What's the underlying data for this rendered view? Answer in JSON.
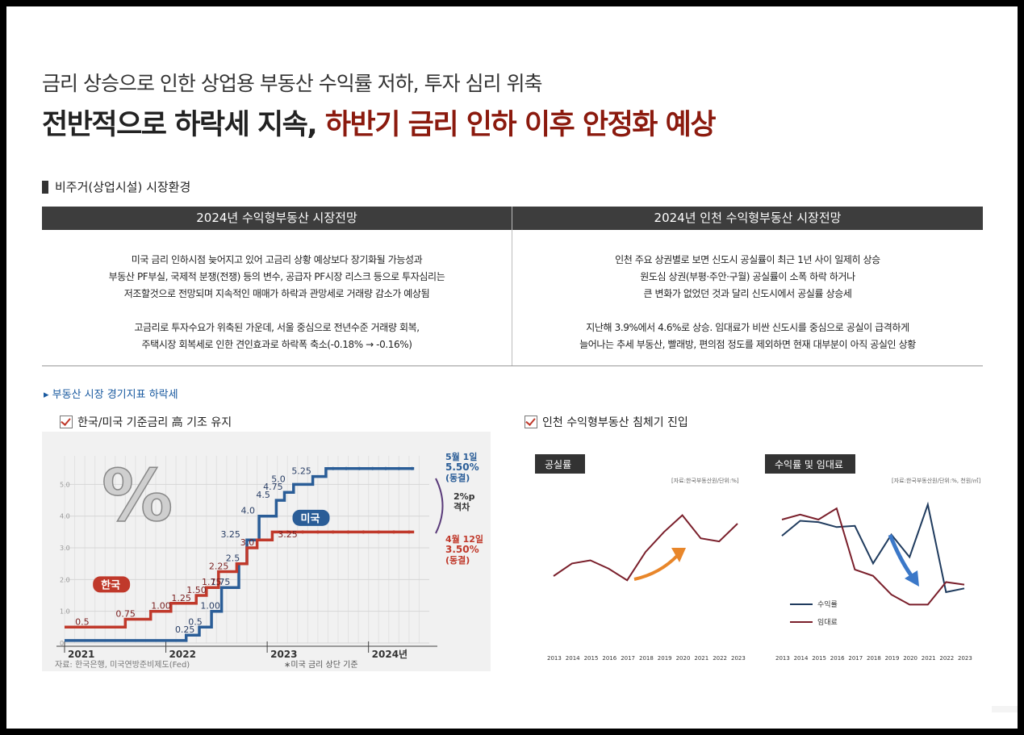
{
  "header": {
    "line1": "금리 상승으로 인한 상업용 부동산 수익률 저하, 투자 심리 위축",
    "line2_black": "전반적으로 하락세 지속, ",
    "line2_red": "하반기 금리 인하 이후 안정화 예상"
  },
  "section_title": "비주거(상업시설) 시장환경",
  "table": {
    "left_header": "2024년 수익형부동산 시장전망",
    "left_p1": [
      "미국 금리 인하시점 늦어지고 있어 고금리 상황 예상보다 장기화될 가능성과",
      "부동산 PF부실, 국제적 분쟁(전쟁) 등의 변수, 공급자 PF시장 리스크 등으로 투자심리는",
      "저조할것으로 전망되며 지속적인 매매가 하락과 관망세로 거래량 감소가 예상됨"
    ],
    "left_p2": [
      "고금리로 투자수요가 위축된 가운데, 서울 중심으로 전년수준 거래량 회복,",
      "주택시장 회복세로 인한 견인효과로 하락폭 축소(-0.18% → -0.16%)"
    ],
    "right_header": "2024년 인천 수익형부동산 시장전망",
    "right_p1": [
      "인천 주요 상권별로 보면 신도시 공실률이 최근 1년 사이 일제히 상승",
      "원도심 상권(부평·주안·구월) 공실률이 소폭 하락 하거나",
      "큰 변화가 없었던 것과 달리 신도시에서 공실률 상승세"
    ],
    "right_p2": [
      "지난해 3.9%에서 4.6%로 상승. 임대료가 비싼 신도시를 중심으로 공실이 급격하게",
      "늘어나는 추세 부동산, 빨래방, 편의점 정도를 제외하면 현재 대부분이 아직 공실인 상황"
    ]
  },
  "subsection": "▸ 부동산 시장 경기지표 하락세",
  "captions": {
    "left": "한국/미국 기준금리 高 기조 유지",
    "right": "인천 수익형부동산 침체기 진입"
  },
  "chart_data": [
    {
      "type": "line",
      "title": "",
      "x_ticks": [
        "2021",
        "2022",
        "2023",
        "2024년"
      ],
      "y_ticks": [
        "0",
        "1.0",
        "2.0",
        "3.0",
        "4.0",
        "5.0"
      ],
      "ylim": [
        0,
        5.9
      ],
      "xlim": [
        2021,
        2024.6
      ],
      "series": [
        {
          "name": "미국",
          "color": "#2a5d97",
          "points": [
            [
              2021,
              0.08
            ],
            [
              2022.2,
              0.08
            ],
            [
              2022.2,
              0.25
            ],
            [
              2022.33,
              0.25
            ],
            [
              2022.33,
              0.5
            ],
            [
              2022.45,
              0.5
            ],
            [
              2022.45,
              1.0
            ],
            [
              2022.55,
              1.0
            ],
            [
              2022.55,
              1.75
            ],
            [
              2022.72,
              1.75
            ],
            [
              2022.72,
              2.5
            ],
            [
              2022.8,
              2.5
            ],
            [
              2022.8,
              3.25
            ],
            [
              2022.92,
              3.25
            ],
            [
              2022.92,
              4.0
            ],
            [
              2023.09,
              4.0
            ],
            [
              2023.09,
              4.5
            ],
            [
              2023.17,
              4.5
            ],
            [
              2023.17,
              4.75
            ],
            [
              2023.26,
              4.75
            ],
            [
              2023.26,
              5.0
            ],
            [
              2023.45,
              5.0
            ],
            [
              2023.45,
              5.25
            ],
            [
              2023.58,
              5.25
            ],
            [
              2023.58,
              5.5
            ],
            [
              2024.45,
              5.5
            ]
          ]
        },
        {
          "name": "한국",
          "color": "#c0392b",
          "points": [
            [
              2021,
              0.5
            ],
            [
              2021.6,
              0.5
            ],
            [
              2021.6,
              0.75
            ],
            [
              2021.85,
              0.75
            ],
            [
              2021.85,
              1.0
            ],
            [
              2022.05,
              1.0
            ],
            [
              2022.05,
              1.25
            ],
            [
              2022.3,
              1.25
            ],
            [
              2022.3,
              1.5
            ],
            [
              2022.4,
              1.5
            ],
            [
              2022.4,
              1.75
            ],
            [
              2022.52,
              1.75
            ],
            [
              2022.52,
              2.25
            ],
            [
              2022.7,
              2.25
            ],
            [
              2022.7,
              2.5
            ],
            [
              2022.8,
              2.5
            ],
            [
              2022.8,
              3.0
            ],
            [
              2022.9,
              3.0
            ],
            [
              2022.9,
              3.25
            ],
            [
              2023.05,
              3.25
            ],
            [
              2023.05,
              3.5
            ],
            [
              2024.45,
              3.5
            ]
          ]
        }
      ],
      "step_labels_us": [
        [
          2022.25,
          0.25,
          "0.25"
        ],
        [
          2022.38,
          0.5,
          "0.5"
        ],
        [
          2022.5,
          1.0,
          "1.00"
        ],
        [
          2022.6,
          1.75,
          "1.75"
        ],
        [
          2022.75,
          2.5,
          "2.5"
        ],
        [
          2022.7,
          3.25,
          "3.25"
        ],
        [
          2022.9,
          4.0,
          "4.0"
        ],
        [
          2023.05,
          4.5,
          "4.5"
        ],
        [
          2023.12,
          4.75,
          "4.75"
        ],
        [
          2023.2,
          5.0,
          "5.0"
        ],
        [
          2023.4,
          5.25,
          "5.25"
        ]
      ],
      "step_labels_kr": [
        [
          2021.2,
          0.5,
          "0.5"
        ],
        [
          2021.6,
          0.75,
          "0.75"
        ],
        [
          2021.95,
          1.0,
          "1.00"
        ],
        [
          2022.15,
          1.25,
          "1.25"
        ],
        [
          2022.3,
          1.5,
          "1.50"
        ],
        [
          2022.45,
          1.75,
          "1.75"
        ],
        [
          2022.52,
          2.25,
          "2.25"
        ],
        [
          2022.83,
          3.0,
          "3.0"
        ],
        [
          2023.2,
          3.25,
          "3.25"
        ]
      ],
      "badge_us": "미국",
      "badge_kr": "한국",
      "us_annot": [
        "5월 1일",
        "5.50%",
        "(동결)"
      ],
      "kr_annot": [
        "4월 12일",
        "3.50%",
        "(동결)"
      ],
      "gap_annot": [
        "2%p",
        "격차"
      ],
      "source": "자료: 한국은행, 미국연방준비제도(Fed)",
      "note": "∗미국 금리 상단 기준"
    },
    {
      "type": "line",
      "title": "공실률",
      "source": "[자료:한국부동산원/단위:%]",
      "x": [
        "2013",
        "2014",
        "2015",
        "2016",
        "2017",
        "2018",
        "2019",
        "2020",
        "2021",
        "2022",
        "2023"
      ],
      "ylim": [
        0,
        10
      ],
      "series": [
        {
          "name": "공실률",
          "color": "#7a1f2b",
          "values": [
            3.0,
            4.2,
            4.5,
            3.7,
            2.6,
            5.3,
            7.2,
            8.8,
            6.6,
            6.3,
            8.0
          ]
        }
      ]
    },
    {
      "type": "line",
      "title": "수익률 및 임대료",
      "source": "[자료:한국부동산원/단위:%, 천원/㎡]",
      "x": [
        "2013",
        "2014",
        "2015",
        "2016",
        "2017",
        "2018",
        "2019",
        "2020",
        "2021",
        "2022",
        "2023"
      ],
      "ylim": [
        0,
        10
      ],
      "series": [
        {
          "name": "수익률",
          "color": "#1f3b5e",
          "values": [
            6.7,
            7.9,
            7.8,
            7.4,
            7.5,
            4.5,
            6.8,
            5.0,
            9.2,
            2.2,
            2.5
          ]
        },
        {
          "name": "임대료",
          "color": "#7a1f2b",
          "values": [
            8.0,
            8.4,
            8.0,
            8.9,
            4.0,
            3.5,
            2.0,
            1.2,
            1.2,
            3.0,
            2.8
          ]
        }
      ]
    }
  ]
}
